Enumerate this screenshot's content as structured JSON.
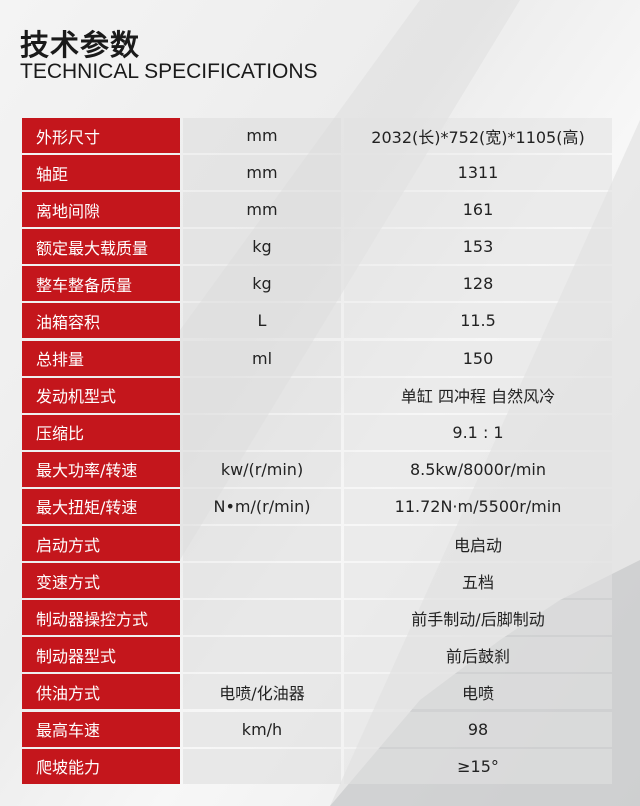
{
  "header": {
    "title_cn": "技术参数",
    "title_en": "TECHNICAL SPECIFICATIONS"
  },
  "colors": {
    "accent": "#c4161c"
  },
  "specs": [
    {
      "name": "外形尺寸",
      "unit": "mm",
      "value": "2032(长)*752(宽)*1105(高)"
    },
    {
      "name": "轴距",
      "unit": "mm",
      "value": "1311"
    },
    {
      "name": "离地间隙",
      "unit": "mm",
      "value": "161"
    },
    {
      "name": "额定最大载质量",
      "unit": "kg",
      "value": "153"
    },
    {
      "name": "整车整备质量",
      "unit": "kg",
      "value": "128"
    },
    {
      "name": "油箱容积",
      "unit": "L",
      "value": "11.5"
    },
    {
      "name": "总排量",
      "unit": "ml",
      "value": "150"
    },
    {
      "name": "发动机型式",
      "unit": "",
      "value": "单缸 四冲程 自然风冷"
    },
    {
      "name": "压缩比",
      "unit": "",
      "value": "9.1 : 1"
    },
    {
      "name": "最大功率/转速",
      "unit": "kw/(r/min)",
      "value": "8.5kw/8000r/min"
    },
    {
      "name": "最大扭矩/转速",
      "unit": "N•m/(r/min)",
      "value": "11.72N·m/5500r/min"
    },
    {
      "name": "启动方式",
      "unit": "",
      "value": "电启动"
    },
    {
      "name": "变速方式",
      "unit": "",
      "value": "五档"
    },
    {
      "name": "制动器操控方式",
      "unit": "",
      "value": "前手制动/后脚制动"
    },
    {
      "name": "制动器型式",
      "unit": "",
      "value": "前后鼓刹"
    },
    {
      "name": "供油方式",
      "unit": "电喷/化油器",
      "value": "电喷"
    },
    {
      "name": "最高车速",
      "unit": "km/h",
      "value": "98"
    },
    {
      "name": "爬坡能力",
      "unit": "",
      "value": "≥15°"
    }
  ]
}
